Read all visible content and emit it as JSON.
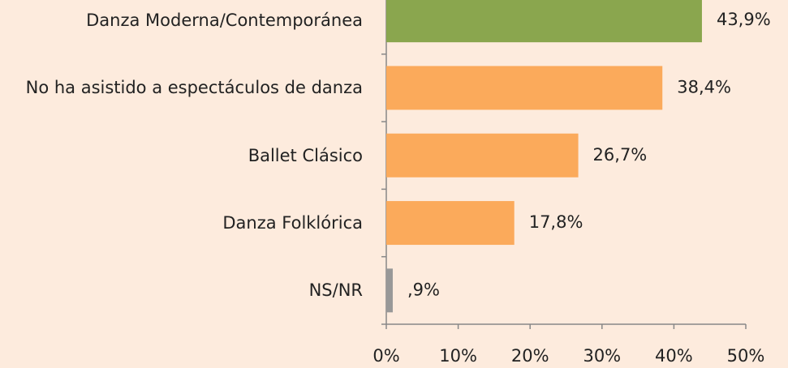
{
  "chart_data": {
    "type": "bar",
    "orientation": "horizontal",
    "categories": [
      "Danza Moderna/Contemporánea",
      "No ha asistido a espectáculos de danza",
      "Ballet Clásico",
      "Danza Folklórica",
      "NS/NR"
    ],
    "values": [
      43.9,
      38.4,
      26.7,
      17.8,
      0.9
    ],
    "value_labels": [
      "43,9%",
      "38,4%",
      "26,7%",
      "17,8%",
      ",9%"
    ],
    "colors": [
      "#8aa64e",
      "#fbaa5b",
      "#fbaa5b",
      "#fbaa5b",
      "#989898"
    ],
    "xlim": [
      0,
      50
    ],
    "xticks": [
      {
        "value": 0,
        "label": "0%"
      },
      {
        "value": 10,
        "label": "10%"
      },
      {
        "value": 20,
        "label": "20%"
      },
      {
        "value": 30,
        "label": "30%"
      },
      {
        "value": 40,
        "label": "40%"
      },
      {
        "value": 50,
        "label": "50%"
      }
    ]
  }
}
